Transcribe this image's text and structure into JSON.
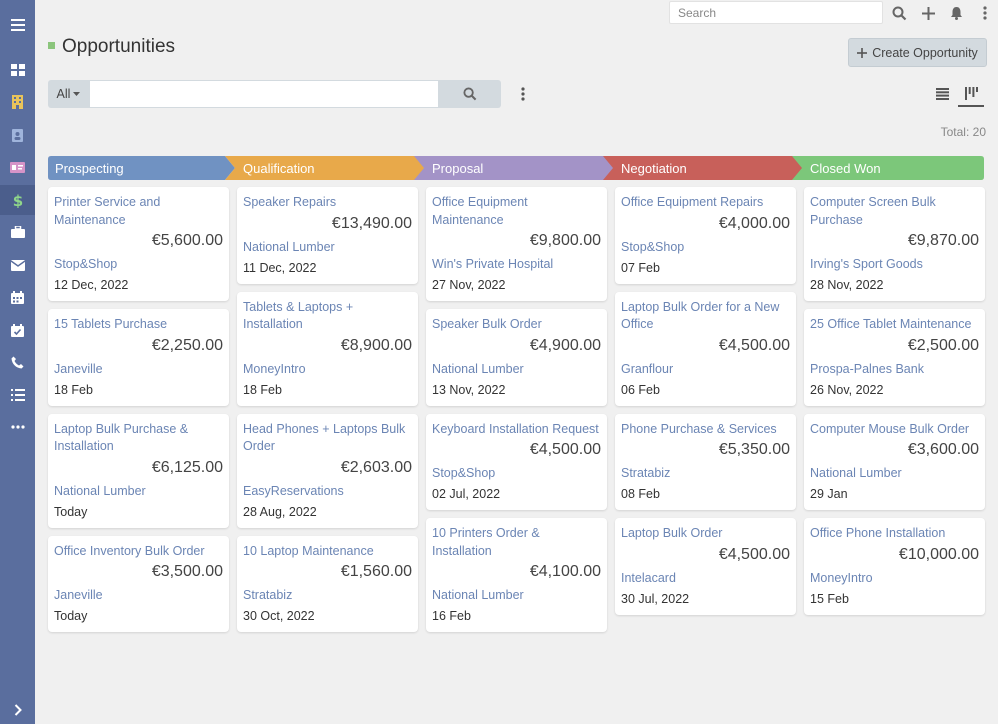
{
  "colors": {
    "sidebar": "#5a6e9e",
    "link": "#6b85b4",
    "title_mark": "#8bc57c",
    "stage_prospecting": "#7092c2",
    "stage_qualification": "#e8a94a",
    "stage_proposal": "#a393c7",
    "stage_negotiation": "#c8605a",
    "stage_closed_won": "#7cc77a"
  },
  "sidebar": {
    "items": [
      {
        "name": "menu-icon"
      },
      {
        "name": "dashboard-icon"
      },
      {
        "name": "accounts-icon"
      },
      {
        "name": "contacts-icon"
      },
      {
        "name": "leads-icon"
      },
      {
        "name": "opportunities-icon"
      },
      {
        "name": "cases-icon"
      },
      {
        "name": "email-icon"
      },
      {
        "name": "calendar-icon"
      },
      {
        "name": "meetings-icon"
      },
      {
        "name": "calls-icon"
      },
      {
        "name": "tasks-icon"
      },
      {
        "name": "more-icon"
      },
      {
        "name": "expand-chevron-icon"
      }
    ]
  },
  "topbar": {
    "search_placeholder": "Search"
  },
  "header": {
    "title": "Opportunities",
    "create_button": "Create Opportunity"
  },
  "filter": {
    "scope": "All",
    "search_value": ""
  },
  "total": "Total: 20",
  "stages": [
    {
      "label": "Prospecting"
    },
    {
      "label": "Qualification"
    },
    {
      "label": "Proposal"
    },
    {
      "label": "Negotiation"
    },
    {
      "label": "Closed Won"
    }
  ],
  "columns": [
    [
      {
        "name": "Printer Service and Maintenance",
        "amount": "€5,600.00",
        "account": "Stop&Shop",
        "date": "12 Dec, 2022"
      },
      {
        "name": "15 Tablets Purchase",
        "amount": "€2,250.00",
        "account": "Janeville",
        "date": "18 Feb"
      },
      {
        "name": "Laptop Bulk Purchase & Installation",
        "amount": "€6,125.00",
        "account": "National Lumber",
        "date": "Today"
      },
      {
        "name": "Office Inventory Bulk Order",
        "amount": "€3,500.00",
        "account": "Janeville",
        "date": "Today"
      }
    ],
    [
      {
        "name": "Speaker Repairs",
        "amount": "€13,490.00",
        "account": "National Lumber",
        "date": "11 Dec, 2022"
      },
      {
        "name": "Tablets & Laptops + Installation",
        "amount": "€8,900.00",
        "account": "MoneyIntro",
        "date": "18 Feb"
      },
      {
        "name": "Head Phones + Laptops Bulk Order",
        "amount": "€2,603.00",
        "account": "EasyReservations",
        "date": "28 Aug, 2022"
      },
      {
        "name": "10 Laptop Maintenance",
        "amount": "€1,560.00",
        "account": "Stratabiz",
        "date": "30 Oct, 2022"
      }
    ],
    [
      {
        "name": "Office Equipment Maintenance",
        "amount": "€9,800.00",
        "account": "Win's Private Hospital",
        "date": "27 Nov, 2022"
      },
      {
        "name": "Speaker Bulk Order",
        "amount": "€4,900.00",
        "account": "National Lumber",
        "date": "13 Nov, 2022"
      },
      {
        "name": "Keyboard Installation Request",
        "amount": "€4,500.00",
        "account": "Stop&Shop",
        "date": "02 Jul, 2022"
      },
      {
        "name": "10 Printers Order & Installation",
        "amount": "€4,100.00",
        "account": "National Lumber",
        "date": "16 Feb"
      }
    ],
    [
      {
        "name": "Office Equipment Repairs",
        "amount": "€4,000.00",
        "account": "Stop&Shop",
        "date": "07 Feb"
      },
      {
        "name": "Laptop Bulk Order for a New Office",
        "amount": "€4,500.00",
        "account": "Granflour",
        "date": "06 Feb"
      },
      {
        "name": "Phone Purchase & Services",
        "amount": "€5,350.00",
        "account": "Stratabiz",
        "date": "08 Feb"
      },
      {
        "name": "Laptop Bulk Order",
        "amount": "€4,500.00",
        "account": "Intelacard",
        "date": "30 Jul, 2022"
      }
    ],
    [
      {
        "name": "Computer Screen Bulk Purchase",
        "amount": "€9,870.00",
        "account": "Irving's Sport Goods",
        "date": "28 Nov, 2022"
      },
      {
        "name": "25 Office Tablet Maintenance",
        "amount": "€2,500.00",
        "account": "Prospa-Palnes Bank",
        "date": "26 Nov, 2022"
      },
      {
        "name": "Computer Mouse Bulk Order",
        "amount": "€3,600.00",
        "account": "National Lumber",
        "date": "29 Jan"
      },
      {
        "name": "Office Phone Installation",
        "amount": "€10,000.00",
        "account": "MoneyIntro",
        "date": "15 Feb"
      }
    ]
  ]
}
